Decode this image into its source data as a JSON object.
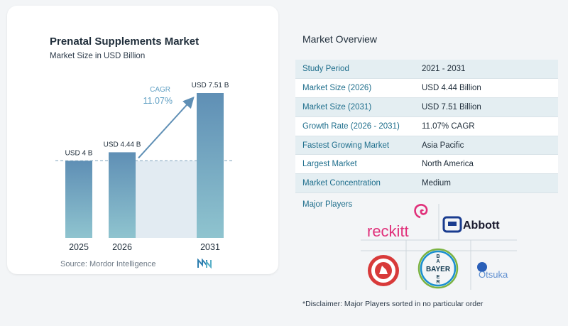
{
  "chart": {
    "title": "Prenatal Supplements Market",
    "subtitle": "Market Size in USD Billion",
    "cagr_label": "CAGR",
    "cagr_value": "11.07%",
    "source": "Source:  Mordor Intelligence"
  },
  "chart_data": {
    "type": "bar",
    "categories": [
      "2025",
      "2026",
      "2031"
    ],
    "values": [
      4.0,
      4.44,
      7.51
    ],
    "data_labels": [
      "USD 4 B",
      "USD 4.44 B",
      "USD 7.51 B"
    ],
    "title": "Prenatal Supplements Market",
    "subtitle": "Market Size in USD Billion",
    "annotations": [
      "CAGR",
      "11.07%"
    ],
    "ylim": [
      0,
      7.51
    ],
    "grid": false,
    "colors": {
      "bar_top": "#5f8fb5",
      "bar_bottom": "#8fc4cf",
      "area": "#e2ebf2",
      "arrow": "#5f8fb5",
      "cagr_text": "#5f9fc3"
    }
  },
  "overview": {
    "title": "Market Overview",
    "rows": [
      {
        "key": "Study Period",
        "value": "2021 - 2031"
      },
      {
        "key": "Market Size (2026)",
        "value": "USD 4.44 Billion"
      },
      {
        "key": "Market Size (2031)",
        "value": "USD 7.51 Billion"
      },
      {
        "key": "Growth Rate (2026 - 2031)",
        "value": "11.07% CAGR"
      },
      {
        "key": "Fastest Growing Market",
        "value": "Asia Pacific"
      },
      {
        "key": "Largest Market",
        "value": "North America"
      },
      {
        "key": "Market Concentration",
        "value": "Medium"
      }
    ],
    "major_players_label": "Major Players",
    "players": [
      "reckitt",
      "Abbott",
      "CHURCH & DWIGHT CO., INC.",
      "BAYER",
      "Otsuka"
    ],
    "disclaimer": "*Disclaimer: Major Players sorted in no particular order"
  }
}
